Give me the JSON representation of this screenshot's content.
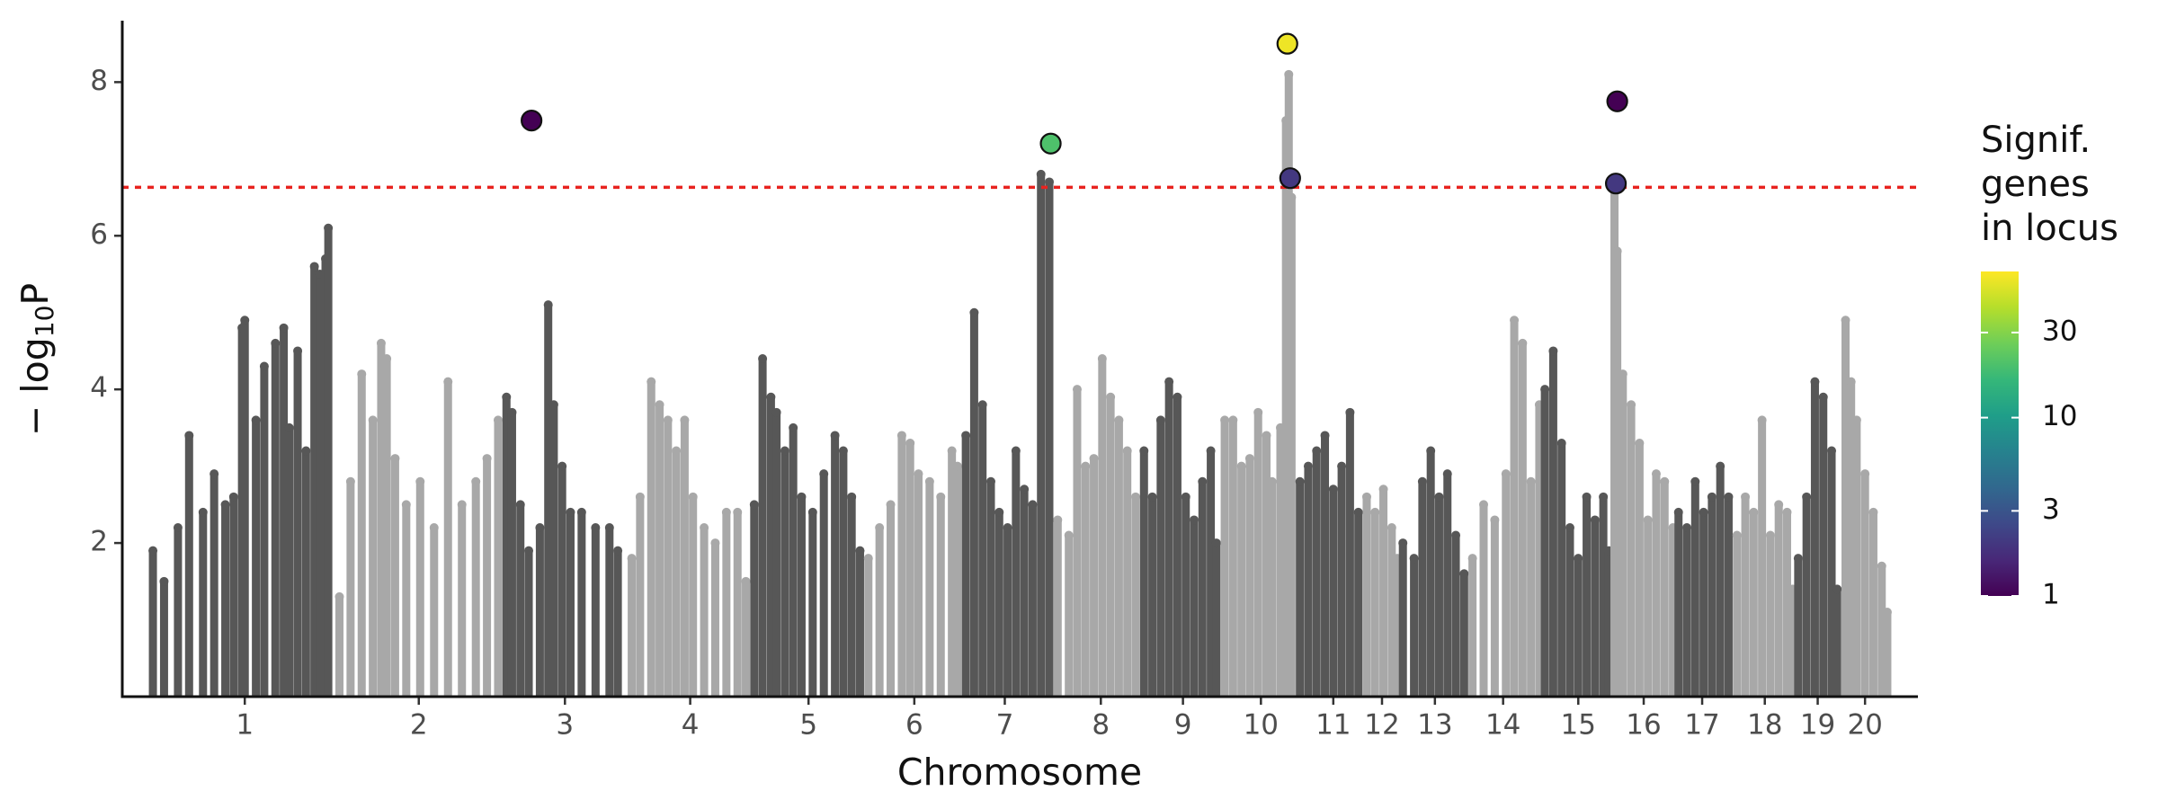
{
  "chart_data": {
    "type": "manhattan",
    "xlabel": "Chromosome",
    "ylabel": [
      "− log",
      "10",
      "P"
    ],
    "xlim": [
      0,
      1290
    ],
    "ylim": [
      0,
      8.8
    ],
    "yticks": [
      2,
      4,
      6,
      8
    ],
    "xticks": [
      {
        "value": 88,
        "label": "1"
      },
      {
        "value": 213,
        "label": "2"
      },
      {
        "value": 318,
        "label": "3"
      },
      {
        "value": 408,
        "label": "4"
      },
      {
        "value": 493,
        "label": "5"
      },
      {
        "value": 569,
        "label": "6"
      },
      {
        "value": 634,
        "label": "7"
      },
      {
        "value": 703,
        "label": "8"
      },
      {
        "value": 762,
        "label": "9"
      },
      {
        "value": 818,
        "label": "10"
      },
      {
        "value": 870,
        "label": "11"
      },
      {
        "value": 905,
        "label": "12"
      },
      {
        "value": 943,
        "label": "13"
      },
      {
        "value": 992,
        "label": "14"
      },
      {
        "value": 1046,
        "label": "15"
      },
      {
        "value": 1093,
        "label": "16"
      },
      {
        "value": 1135,
        "label": "17"
      },
      {
        "value": 1180,
        "label": "18"
      },
      {
        "value": 1218,
        "label": "19"
      },
      {
        "value": 1252,
        "label": "20"
      }
    ],
    "threshold": 6.63,
    "threshold_color": "#e8231f",
    "chromosomes": [
      {
        "color": "#575757",
        "x": [
          22,
          30,
          40,
          48,
          58,
          66,
          74,
          80,
          86,
          88,
          96,
          102,
          110,
          116,
          120,
          126,
          132,
          138,
          142,
          146,
          148
        ],
        "values": [
          1.9,
          1.5,
          2.2,
          3.4,
          2.4,
          2.9,
          2.5,
          2.6,
          4.8,
          4.9,
          3.6,
          4.3,
          4.6,
          4.8,
          3.5,
          4.5,
          3.2,
          5.6,
          5.5,
          5.7,
          6.1
        ]
      },
      {
        "color": "#a8a8a8",
        "x": [
          156,
          164,
          172,
          180,
          186,
          190,
          196,
          204,
          214,
          224,
          234,
          244,
          254,
          262,
          270
        ],
        "values": [
          1.3,
          2.8,
          4.2,
          3.6,
          4.6,
          4.4,
          3.1,
          2.5,
          2.8,
          2.2,
          4.1,
          2.5,
          2.8,
          3.1,
          3.6
        ]
      },
      {
        "color": "#575757",
        "x": [
          276,
          280,
          286,
          292,
          300,
          306,
          310,
          316,
          322,
          330,
          340,
          350,
          356
        ],
        "values": [
          3.9,
          3.7,
          2.5,
          1.9,
          2.2,
          5.1,
          3.8,
          3.0,
          2.4,
          2.4,
          2.2,
          2.2,
          1.9
        ]
      },
      {
        "color": "#a8a8a8",
        "x": [
          366,
          372,
          380,
          386,
          392,
          398,
          404,
          410,
          418,
          426,
          434,
          442,
          448
        ],
        "values": [
          1.8,
          2.6,
          4.1,
          3.8,
          3.6,
          3.2,
          3.6,
          2.6,
          2.2,
          2.0,
          2.4,
          2.4,
          1.5
        ]
      },
      {
        "color": "#575757",
        "x": [
          454,
          460,
          466,
          470,
          476,
          482,
          488,
          496,
          504,
          512,
          518,
          524,
          530
        ],
        "values": [
          2.5,
          4.4,
          3.9,
          3.7,
          3.2,
          3.5,
          2.6,
          2.4,
          2.9,
          3.4,
          3.2,
          2.6,
          1.9
        ]
      },
      {
        "color": "#a8a8a8",
        "x": [
          536,
          544,
          552,
          560,
          566,
          572,
          580,
          588,
          596,
          600
        ],
        "values": [
          1.8,
          2.2,
          2.5,
          3.4,
          3.3,
          2.9,
          2.8,
          2.6,
          3.2,
          3.0
        ]
      },
      {
        "color": "#575757",
        "x": [
          606,
          612,
          618,
          624,
          630,
          636,
          642,
          648,
          654,
          660,
          666
        ],
        "values": [
          3.4,
          5.0,
          3.8,
          2.8,
          2.4,
          2.2,
          3.2,
          2.7,
          2.5,
          6.8,
          6.7
        ]
      },
      {
        "color": "#a8a8a8",
        "x": [
          672,
          680,
          686,
          692,
          698,
          704,
          710,
          716,
          722,
          728
        ],
        "values": [
          2.3,
          2.1,
          4.0,
          3.0,
          3.1,
          4.4,
          3.9,
          3.6,
          3.2,
          2.6
        ]
      },
      {
        "color": "#575757",
        "x": [
          734,
          740,
          746,
          752,
          758,
          764,
          770,
          776,
          782,
          786
        ],
        "values": [
          3.2,
          2.6,
          3.6,
          4.1,
          3.9,
          2.6,
          2.3,
          2.8,
          3.2,
          2.0
        ]
      },
      {
        "color": "#a8a8a8",
        "x": [
          792,
          798,
          804,
          810,
          816,
          822,
          826,
          832,
          836,
          838,
          840
        ],
        "values": [
          3.6,
          3.6,
          3.0,
          3.1,
          3.7,
          3.4,
          2.8,
          3.5,
          7.5,
          8.1,
          6.5
        ]
      },
      {
        "color": "#575757",
        "x": [
          846,
          852,
          858,
          864,
          870,
          876,
          882,
          888
        ],
        "values": [
          2.8,
          3.0,
          3.2,
          3.4,
          2.7,
          3.0,
          3.7,
          2.4
        ]
      },
      {
        "color": "#a8a8a8",
        "x": [
          894,
          900,
          906,
          912,
          916
        ],
        "values": [
          2.6,
          2.4,
          2.7,
          2.2,
          1.8
        ]
      },
      {
        "color": "#575757",
        "x": [
          920,
          928,
          934,
          940,
          946,
          952,
          958,
          964
        ],
        "values": [
          2.0,
          1.8,
          2.8,
          3.2,
          2.6,
          2.9,
          2.1,
          1.6
        ]
      },
      {
        "color": "#a8a8a8",
        "x": [
          970,
          978,
          986,
          994,
          1000,
          1006,
          1012,
          1018
        ],
        "values": [
          1.8,
          2.5,
          2.3,
          2.9,
          4.9,
          4.6,
          2.8,
          3.8
        ]
      },
      {
        "color": "#575757",
        "x": [
          1022,
          1028,
          1034,
          1040,
          1046,
          1052,
          1058,
          1064,
          1068
        ],
        "values": [
          4.0,
          4.5,
          3.3,
          2.2,
          1.8,
          2.6,
          2.3,
          2.6,
          1.9
        ]
      },
      {
        "color": "#a8a8a8",
        "x": [
          1072,
          1074,
          1078,
          1084,
          1090,
          1096,
          1102,
          1108,
          1114
        ],
        "values": [
          6.6,
          5.8,
          4.2,
          3.8,
          3.3,
          2.3,
          2.9,
          2.8,
          2.2
        ]
      },
      {
        "color": "#575757",
        "x": [
          1118,
          1124,
          1130,
          1136,
          1142,
          1148,
          1154
        ],
        "values": [
          2.4,
          2.2,
          2.8,
          2.4,
          2.6,
          3.0,
          2.6
        ]
      },
      {
        "color": "#a8a8a8",
        "x": [
          1160,
          1166,
          1172,
          1178,
          1184,
          1190,
          1196,
          1200
        ],
        "values": [
          2.1,
          2.6,
          2.4,
          3.6,
          2.1,
          2.5,
          2.4,
          1.4
        ]
      },
      {
        "color": "#575757",
        "x": [
          1204,
          1210,
          1216,
          1222,
          1228,
          1232
        ],
        "values": [
          1.8,
          2.6,
          4.1,
          3.9,
          3.2,
          1.4
        ]
      },
      {
        "color": "#a8a8a8",
        "x": [
          1238,
          1242,
          1246,
          1252,
          1258,
          1264,
          1268
        ],
        "values": [
          4.9,
          4.1,
          3.6,
          2.9,
          2.4,
          1.7,
          1.1
        ]
      }
    ],
    "loci": {
      "x": [
        294,
        667,
        837,
        839,
        1074,
        1073
      ],
      "values": [
        7.5,
        7.2,
        8.5,
        6.75,
        7.75,
        6.68
      ],
      "genes": [
        1,
        20,
        60,
        2,
        1,
        2
      ]
    },
    "colorbar_title": [
      "Signif.",
      "genes",
      "in locus"
    ],
    "colorlim": [
      1,
      66
    ],
    "colorticks": [
      1,
      3,
      10,
      30
    ],
    "log_color": true,
    "colorscale": [
      "#440154",
      "#482878",
      "#3e4989",
      "#31688e",
      "#26828e",
      "#1f9e89",
      "#35b779",
      "#6ece58",
      "#b5de2b",
      "#fde725"
    ]
  }
}
